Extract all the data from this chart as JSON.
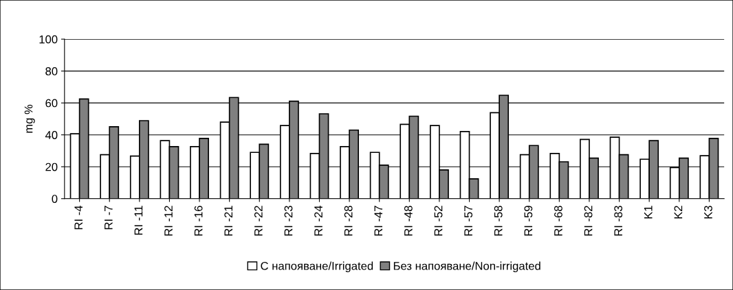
{
  "chart_data": {
    "type": "bar",
    "ylabel": "mg %",
    "categories": [
      "RI -4",
      "RI -7",
      "RI -11",
      "RI -12",
      "RI -16",
      "RI -21",
      "RI -22",
      "RI -23",
      "RI -24",
      "RI -28",
      "RI -47",
      "RI -48",
      "RI -52",
      "RI -57",
      "RI -58",
      "RI -59",
      "RI -68",
      "RI -82",
      "RI -83",
      "K1",
      "K2",
      "K3"
    ],
    "series": [
      {
        "name": "С напояване/Irrigated",
        "color": "#ffffff",
        "values": [
          40.7,
          27.6,
          26.7,
          36.4,
          32.6,
          48.0,
          29.0,
          45.8,
          28.3,
          32.6,
          29.0,
          46.6,
          45.8,
          42.1,
          53.9,
          27.6,
          28.3,
          37.1,
          38.5,
          24.7,
          19.5,
          26.9
        ]
      },
      {
        "name": "Без напояване/Non-irrigated",
        "color": "#808080",
        "values": [
          62.5,
          45.1,
          48.9,
          32.6,
          37.8,
          63.4,
          34.1,
          61.1,
          53.2,
          43.0,
          21.0,
          51.7,
          18.0,
          12.4,
          64.8,
          33.3,
          23.1,
          25.4,
          27.6,
          36.4,
          25.4,
          37.8
        ]
      }
    ],
    "ylim": [
      0,
      100
    ],
    "yticks": [
      0,
      20,
      40,
      60,
      80,
      100
    ],
    "grid": "y",
    "legend": "bottom"
  }
}
